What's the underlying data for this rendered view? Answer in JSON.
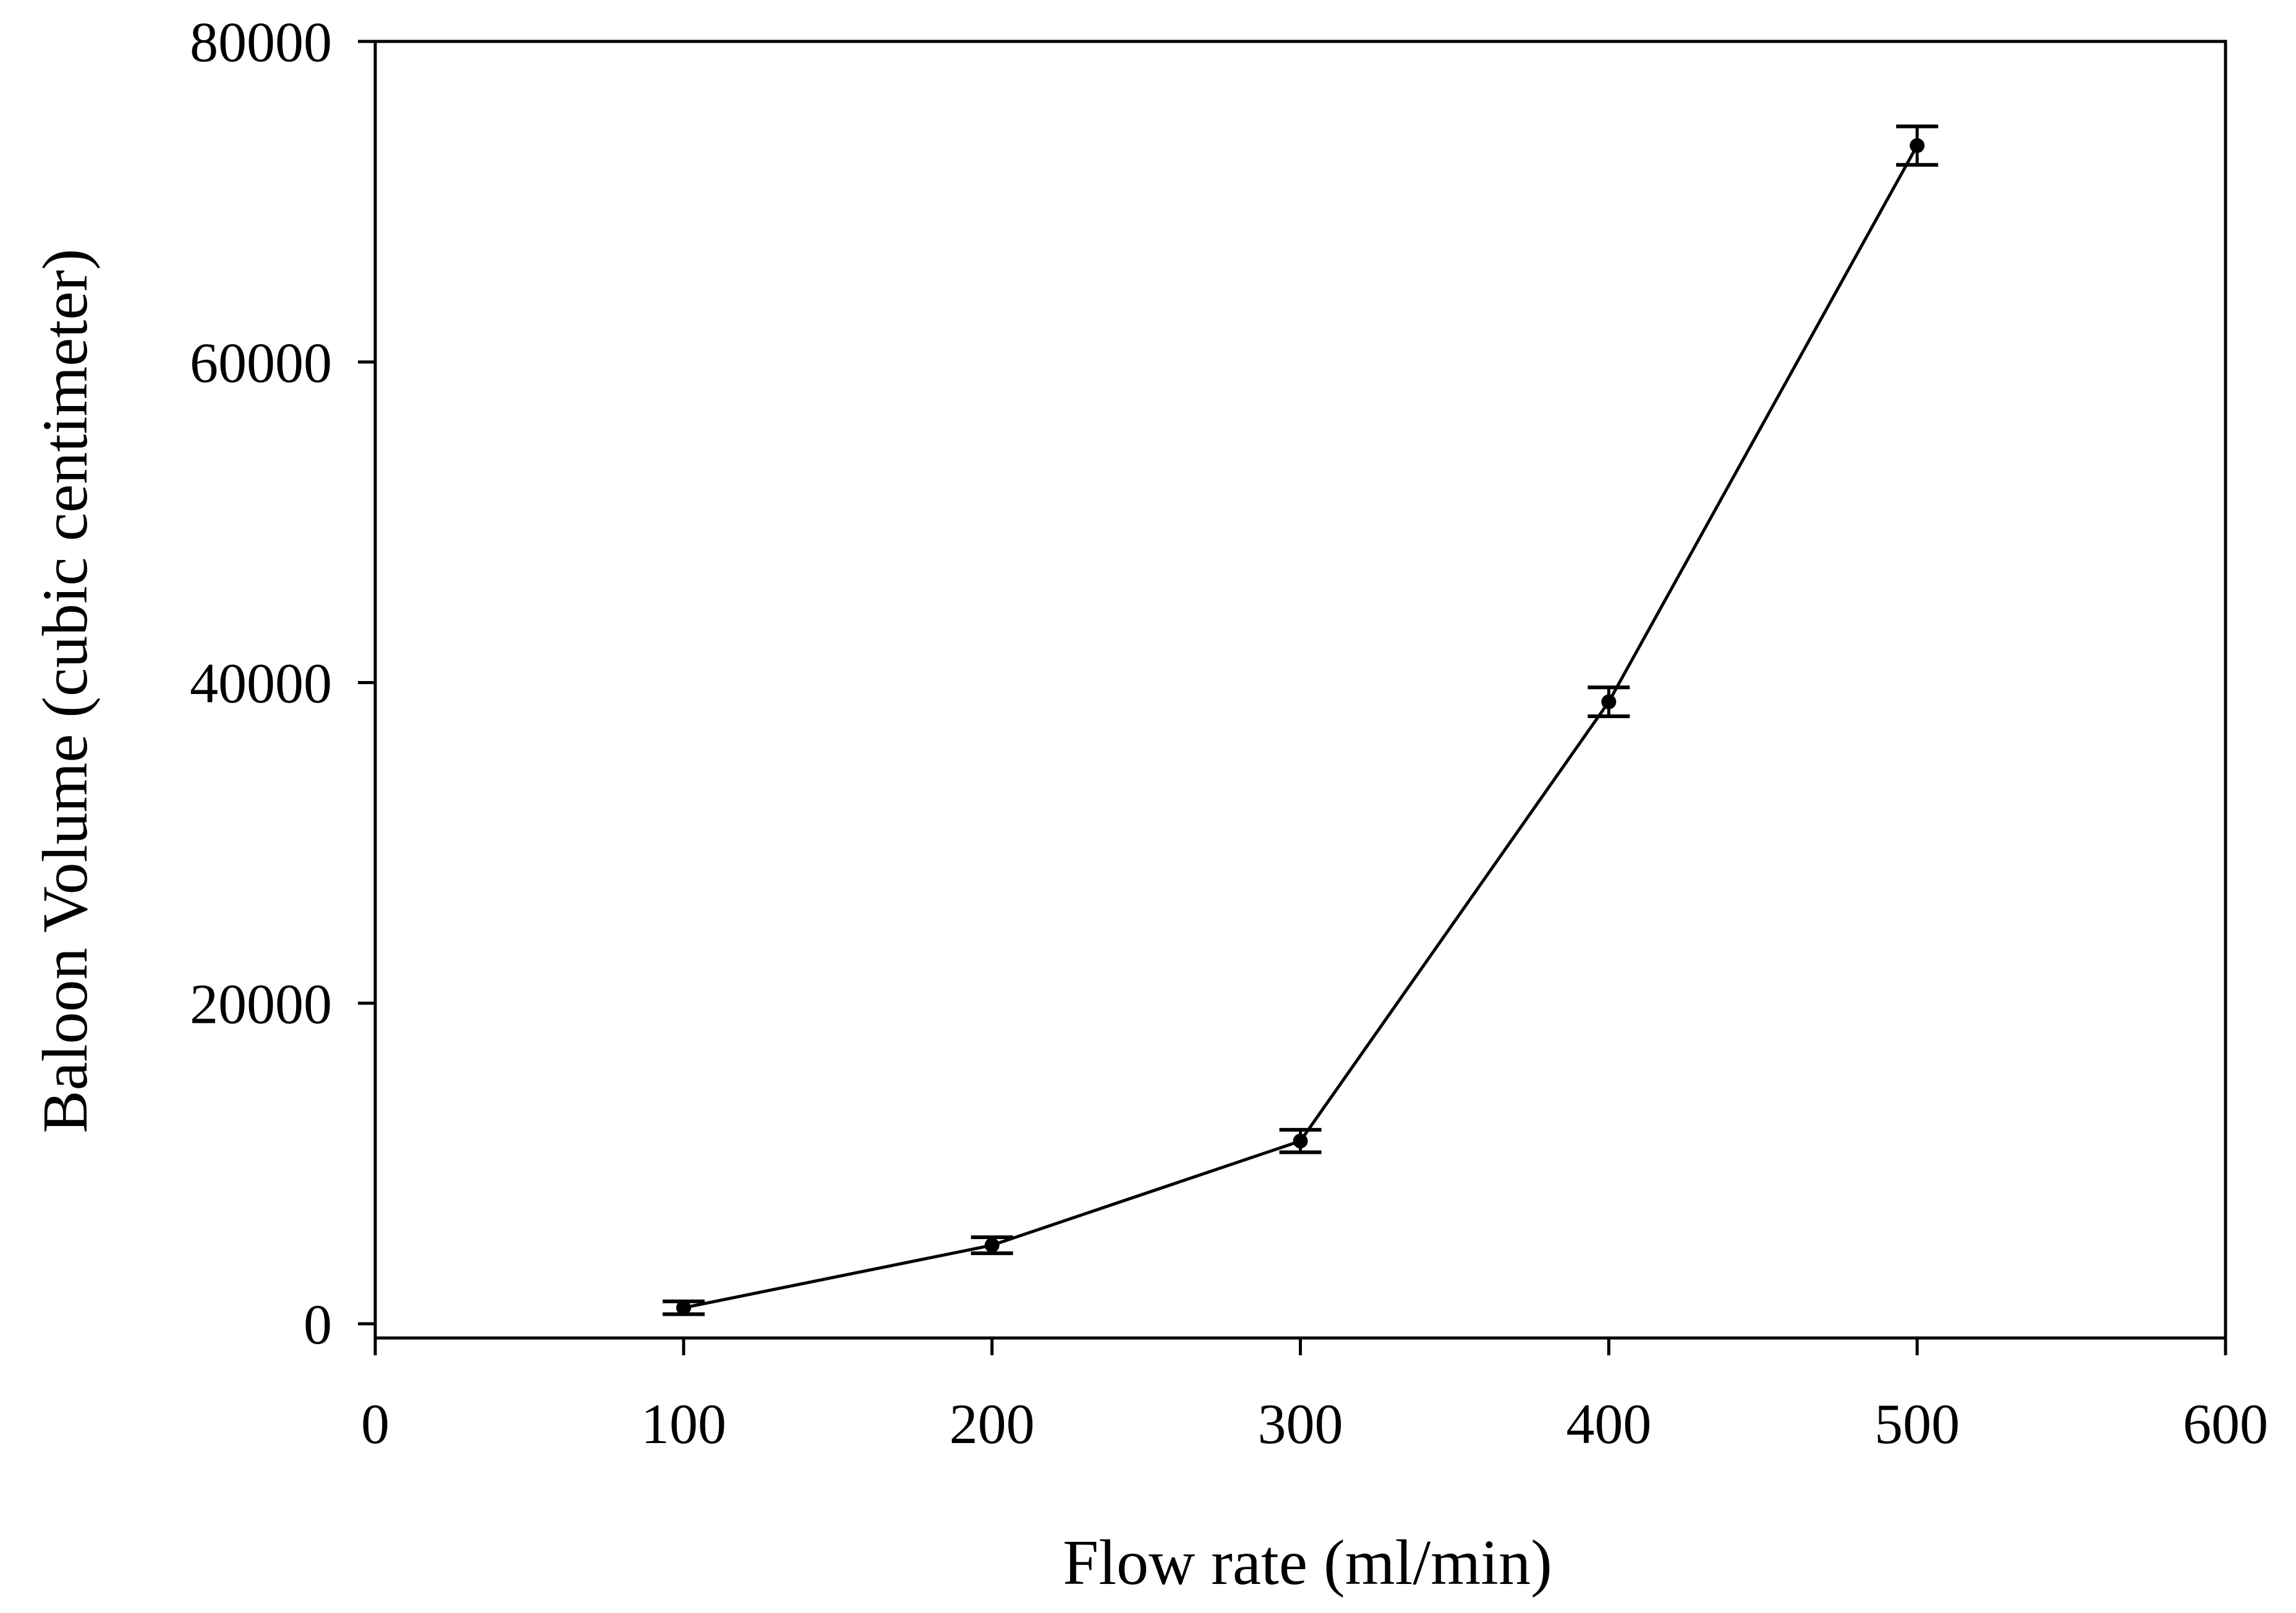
{
  "chart_data": {
    "type": "line",
    "title": "",
    "xlabel": "Flow rate (ml/min)",
    "ylabel": "Baloon Volume (cubic centimeter)",
    "xlim": [
      0,
      600
    ],
    "ylim": [
      0,
      80000
    ],
    "x_ticks": [
      0,
      100,
      200,
      300,
      400,
      500,
      600
    ],
    "y_ticks": [
      0,
      20000,
      40000,
      60000,
      80000
    ],
    "x_tick_labels": [
      "0",
      "100",
      "200",
      "300",
      "400",
      "500",
      "600"
    ],
    "y_tick_labels": [
      "0",
      "20000",
      "40000",
      "60000",
      "80000"
    ],
    "grid": false,
    "series": [
      {
        "name": "Baloon Volume",
        "x": [
          100,
          200,
          300,
          400,
          500
        ],
        "values": [
          1000,
          4900,
          11400,
          38800,
          73500
        ],
        "error": [
          400,
          500,
          700,
          900,
          1200
        ],
        "color": "#000000"
      }
    ]
  }
}
